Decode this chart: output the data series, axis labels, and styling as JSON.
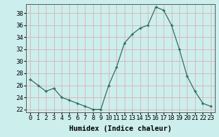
{
  "x": [
    0,
    1,
    2,
    3,
    4,
    5,
    6,
    7,
    8,
    9,
    10,
    11,
    12,
    13,
    14,
    15,
    16,
    17,
    18,
    19,
    20,
    21,
    22,
    23
  ],
  "y": [
    27,
    26,
    25,
    25.5,
    24,
    23.5,
    23,
    22.5,
    22,
    22,
    26,
    29,
    33,
    34.5,
    35.5,
    36,
    39,
    38.5,
    36,
    32,
    27.5,
    25,
    23,
    22.5
  ],
  "line_color": "#2e6b5e",
  "marker_color": "#2e6b5e",
  "bg_color": "#cceeed",
  "grid_color": "#d9b0b0",
  "xlabel": "Humidex (Indice chaleur)",
  "xlim": [
    -0.5,
    23.5
  ],
  "ylim": [
    21.5,
    39.5
  ],
  "yticks": [
    22,
    24,
    26,
    28,
    30,
    32,
    34,
    36,
    38
  ],
  "xticks": [
    0,
    1,
    2,
    3,
    4,
    5,
    6,
    7,
    8,
    9,
    10,
    11,
    12,
    13,
    14,
    15,
    16,
    17,
    18,
    19,
    20,
    21,
    22,
    23
  ],
  "font_size": 6.5,
  "xlabel_fontsize": 7.5
}
